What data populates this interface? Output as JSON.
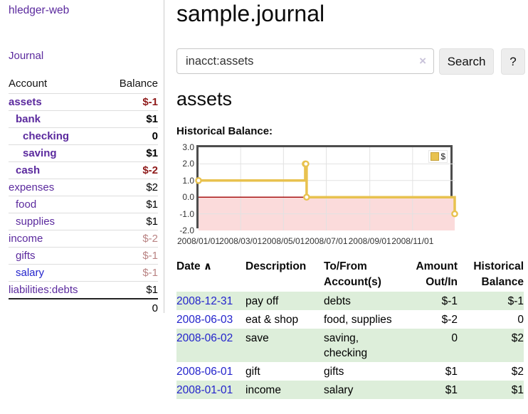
{
  "app": {
    "brand": "hledger-web",
    "nav_journal": "Journal"
  },
  "sidebar": {
    "account_header": "Account",
    "balance_header": "Balance",
    "accounts": [
      {
        "name": "assets",
        "indent": 1,
        "bold": true,
        "balance": "$-1",
        "neg": "strong",
        "link": "purple"
      },
      {
        "name": "bank",
        "indent": 2,
        "bold": true,
        "balance": "$1",
        "neg": "none",
        "link": "purple"
      },
      {
        "name": "checking",
        "indent": 3,
        "bold": true,
        "balance": "0",
        "neg": "none",
        "link": "purple"
      },
      {
        "name": "saving",
        "indent": 3,
        "bold": true,
        "balance": "$1",
        "neg": "none",
        "link": "purple"
      },
      {
        "name": "cash",
        "indent": 2,
        "bold": true,
        "balance": "$-2",
        "neg": "strong",
        "link": "purple"
      },
      {
        "name": "expenses",
        "indent": 1,
        "bold": false,
        "balance": "$2",
        "neg": "none",
        "link": "purple"
      },
      {
        "name": "food",
        "indent": 2,
        "bold": false,
        "balance": "$1",
        "neg": "none",
        "link": "purple"
      },
      {
        "name": "supplies",
        "indent": 2,
        "bold": false,
        "balance": "$1",
        "neg": "none",
        "link": "purple"
      },
      {
        "name": "income",
        "indent": 1,
        "bold": false,
        "balance": "$-2",
        "neg": "dim",
        "link": "purple"
      },
      {
        "name": "gifts",
        "indent": 2,
        "bold": false,
        "balance": "$-1",
        "neg": "dim",
        "link": "purple"
      },
      {
        "name": "salary",
        "indent": 2,
        "bold": false,
        "balance": "$-1",
        "neg": "dim",
        "link": "blue"
      },
      {
        "name": "liabilities:debts",
        "indent": 1,
        "bold": false,
        "balance": "$1",
        "neg": "none",
        "link": "purple"
      }
    ],
    "total": "0"
  },
  "main": {
    "title": "sample.journal",
    "search": {
      "value": "inacct:assets",
      "clear_icon": "×",
      "search_button": "Search",
      "help_button": "?"
    },
    "account_heading": "assets",
    "chart_heading": "Historical Balance:"
  },
  "chart_data": {
    "type": "line",
    "step": true,
    "title": "Historical Balance:",
    "series": [
      {
        "name": "$",
        "color": "#e8c24f",
        "points": [
          {
            "date": "2008-01-01",
            "day": 0,
            "value": 1
          },
          {
            "date": "2008-06-01",
            "day": 152,
            "value": 2
          },
          {
            "date": "2008-06-02",
            "day": 153,
            "value": 2
          },
          {
            "date": "2008-06-03",
            "day": 154,
            "value": 0
          },
          {
            "date": "2008-12-31",
            "day": 365,
            "value": -1
          }
        ]
      }
    ],
    "x_ticks": [
      {
        "label": "2008/01/01",
        "day": 0
      },
      {
        "label": "2008/03/01",
        "day": 60
      },
      {
        "label": "2008/05/01",
        "day": 121
      },
      {
        "label": "2008/07/01",
        "day": 182
      },
      {
        "label": "2008/09/01",
        "day": 244
      },
      {
        "label": "2008/11/01",
        "day": 305
      }
    ],
    "x_range_days": [
      0,
      365
    ],
    "y_ticks": [
      3.0,
      2.0,
      1.0,
      0.0,
      -1.0,
      -2.0
    ],
    "ylim": [
      -2,
      3
    ],
    "grid": true,
    "legend": {
      "label": "$",
      "position": "top-right"
    },
    "negative_band_below": 0
  },
  "register": {
    "headers": {
      "date": "Date",
      "sort_icon": "∧",
      "description": "Description",
      "accounts": "To/From\nAccount(s)",
      "amount": "Amount\nOut/In",
      "balance": "Historical\nBalance"
    },
    "rows": [
      {
        "date": "2008-12-31",
        "description": "pay off",
        "accounts": "debts",
        "amount": "$-1",
        "amount_neg": true,
        "balance": "$-1",
        "balance_neg": true
      },
      {
        "date": "2008-06-03",
        "description": "eat & shop",
        "accounts": "food, supplies",
        "amount": "$-2",
        "amount_neg": true,
        "balance": "0",
        "balance_neg": false
      },
      {
        "date": "2008-06-02",
        "description": "save",
        "accounts": "saving, checking",
        "amount": "0",
        "amount_neg": false,
        "balance": "$2",
        "balance_neg": false
      },
      {
        "date": "2008-06-01",
        "description": "gift",
        "accounts": "gifts",
        "amount": "$1",
        "amount_neg": false,
        "balance": "$2",
        "balance_neg": false
      },
      {
        "date": "2008-01-01",
        "description": "income",
        "accounts": "salary",
        "amount": "$1",
        "amount_neg": false,
        "balance": "$1",
        "balance_neg": false
      }
    ]
  },
  "colors": {
    "link_purple": "#5b2a9e",
    "link_blue": "#2323cc",
    "negative_strong": "#8f1a1a",
    "negative_dim": "#b98383",
    "row_stripe_green": "#ddeeda",
    "chart_line_gold": "#e8c24f",
    "chart_negative_band": "#fbdbdb",
    "chart_zero_line": "#a00000",
    "chart_border": "#4d4d4d",
    "gridline": "#e2e2e2"
  }
}
